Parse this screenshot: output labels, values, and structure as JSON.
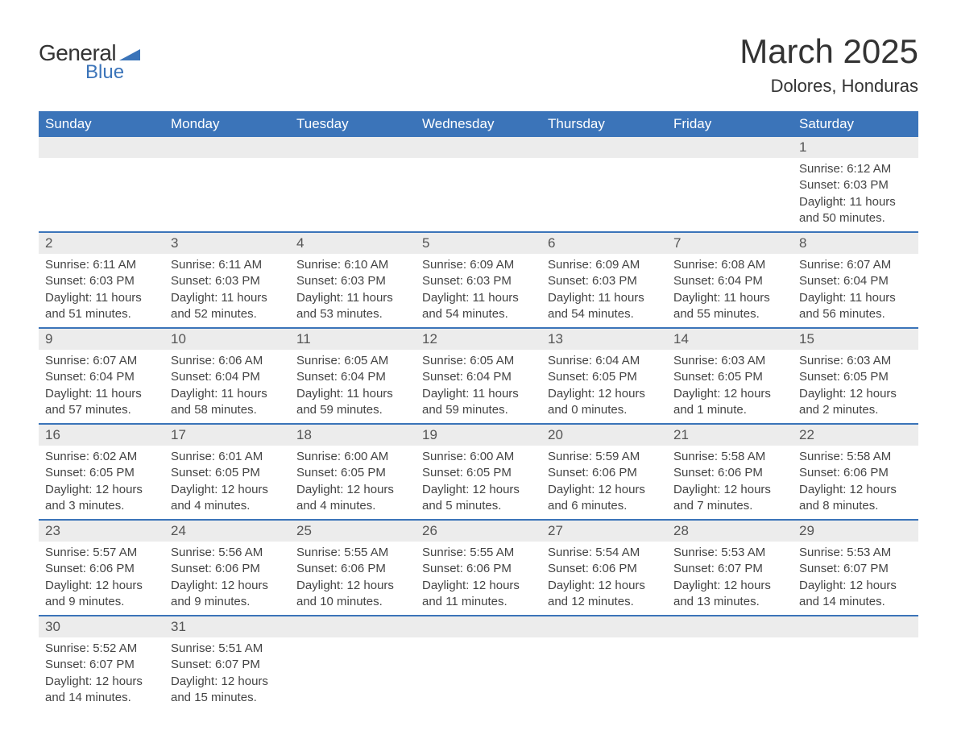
{
  "logo": {
    "text1": "General",
    "text2": "Blue",
    "text_color": "#333333",
    "accent_color": "#3b74b9"
  },
  "header": {
    "title": "March 2025",
    "location": "Dolores, Honduras"
  },
  "style": {
    "header_bg": "#3b74b9",
    "header_fg": "#ffffff",
    "daynum_bg": "#ececec",
    "row_border": "#3b74b9",
    "body_text": "#444444"
  },
  "weekdays": [
    "Sunday",
    "Monday",
    "Tuesday",
    "Wednesday",
    "Thursday",
    "Friday",
    "Saturday"
  ],
  "weeks": [
    [
      {
        "empty": true
      },
      {
        "empty": true
      },
      {
        "empty": true
      },
      {
        "empty": true
      },
      {
        "empty": true
      },
      {
        "empty": true
      },
      {
        "day": "1",
        "sunrise": "Sunrise: 6:12 AM",
        "sunset": "Sunset: 6:03 PM",
        "daylight1": "Daylight: 11 hours",
        "daylight2": "and 50 minutes."
      }
    ],
    [
      {
        "day": "2",
        "sunrise": "Sunrise: 6:11 AM",
        "sunset": "Sunset: 6:03 PM",
        "daylight1": "Daylight: 11 hours",
        "daylight2": "and 51 minutes."
      },
      {
        "day": "3",
        "sunrise": "Sunrise: 6:11 AM",
        "sunset": "Sunset: 6:03 PM",
        "daylight1": "Daylight: 11 hours",
        "daylight2": "and 52 minutes."
      },
      {
        "day": "4",
        "sunrise": "Sunrise: 6:10 AM",
        "sunset": "Sunset: 6:03 PM",
        "daylight1": "Daylight: 11 hours",
        "daylight2": "and 53 minutes."
      },
      {
        "day": "5",
        "sunrise": "Sunrise: 6:09 AM",
        "sunset": "Sunset: 6:03 PM",
        "daylight1": "Daylight: 11 hours",
        "daylight2": "and 54 minutes."
      },
      {
        "day": "6",
        "sunrise": "Sunrise: 6:09 AM",
        "sunset": "Sunset: 6:03 PM",
        "daylight1": "Daylight: 11 hours",
        "daylight2": "and 54 minutes."
      },
      {
        "day": "7",
        "sunrise": "Sunrise: 6:08 AM",
        "sunset": "Sunset: 6:04 PM",
        "daylight1": "Daylight: 11 hours",
        "daylight2": "and 55 minutes."
      },
      {
        "day": "8",
        "sunrise": "Sunrise: 6:07 AM",
        "sunset": "Sunset: 6:04 PM",
        "daylight1": "Daylight: 11 hours",
        "daylight2": "and 56 minutes."
      }
    ],
    [
      {
        "day": "9",
        "sunrise": "Sunrise: 6:07 AM",
        "sunset": "Sunset: 6:04 PM",
        "daylight1": "Daylight: 11 hours",
        "daylight2": "and 57 minutes."
      },
      {
        "day": "10",
        "sunrise": "Sunrise: 6:06 AM",
        "sunset": "Sunset: 6:04 PM",
        "daylight1": "Daylight: 11 hours",
        "daylight2": "and 58 minutes."
      },
      {
        "day": "11",
        "sunrise": "Sunrise: 6:05 AM",
        "sunset": "Sunset: 6:04 PM",
        "daylight1": "Daylight: 11 hours",
        "daylight2": "and 59 minutes."
      },
      {
        "day": "12",
        "sunrise": "Sunrise: 6:05 AM",
        "sunset": "Sunset: 6:04 PM",
        "daylight1": "Daylight: 11 hours",
        "daylight2": "and 59 minutes."
      },
      {
        "day": "13",
        "sunrise": "Sunrise: 6:04 AM",
        "sunset": "Sunset: 6:05 PM",
        "daylight1": "Daylight: 12 hours",
        "daylight2": "and 0 minutes."
      },
      {
        "day": "14",
        "sunrise": "Sunrise: 6:03 AM",
        "sunset": "Sunset: 6:05 PM",
        "daylight1": "Daylight: 12 hours",
        "daylight2": "and 1 minute."
      },
      {
        "day": "15",
        "sunrise": "Sunrise: 6:03 AM",
        "sunset": "Sunset: 6:05 PM",
        "daylight1": "Daylight: 12 hours",
        "daylight2": "and 2 minutes."
      }
    ],
    [
      {
        "day": "16",
        "sunrise": "Sunrise: 6:02 AM",
        "sunset": "Sunset: 6:05 PM",
        "daylight1": "Daylight: 12 hours",
        "daylight2": "and 3 minutes."
      },
      {
        "day": "17",
        "sunrise": "Sunrise: 6:01 AM",
        "sunset": "Sunset: 6:05 PM",
        "daylight1": "Daylight: 12 hours",
        "daylight2": "and 4 minutes."
      },
      {
        "day": "18",
        "sunrise": "Sunrise: 6:00 AM",
        "sunset": "Sunset: 6:05 PM",
        "daylight1": "Daylight: 12 hours",
        "daylight2": "and 4 minutes."
      },
      {
        "day": "19",
        "sunrise": "Sunrise: 6:00 AM",
        "sunset": "Sunset: 6:05 PM",
        "daylight1": "Daylight: 12 hours",
        "daylight2": "and 5 minutes."
      },
      {
        "day": "20",
        "sunrise": "Sunrise: 5:59 AM",
        "sunset": "Sunset: 6:06 PM",
        "daylight1": "Daylight: 12 hours",
        "daylight2": "and 6 minutes."
      },
      {
        "day": "21",
        "sunrise": "Sunrise: 5:58 AM",
        "sunset": "Sunset: 6:06 PM",
        "daylight1": "Daylight: 12 hours",
        "daylight2": "and 7 minutes."
      },
      {
        "day": "22",
        "sunrise": "Sunrise: 5:58 AM",
        "sunset": "Sunset: 6:06 PM",
        "daylight1": "Daylight: 12 hours",
        "daylight2": "and 8 minutes."
      }
    ],
    [
      {
        "day": "23",
        "sunrise": "Sunrise: 5:57 AM",
        "sunset": "Sunset: 6:06 PM",
        "daylight1": "Daylight: 12 hours",
        "daylight2": "and 9 minutes."
      },
      {
        "day": "24",
        "sunrise": "Sunrise: 5:56 AM",
        "sunset": "Sunset: 6:06 PM",
        "daylight1": "Daylight: 12 hours",
        "daylight2": "and 9 minutes."
      },
      {
        "day": "25",
        "sunrise": "Sunrise: 5:55 AM",
        "sunset": "Sunset: 6:06 PM",
        "daylight1": "Daylight: 12 hours",
        "daylight2": "and 10 minutes."
      },
      {
        "day": "26",
        "sunrise": "Sunrise: 5:55 AM",
        "sunset": "Sunset: 6:06 PM",
        "daylight1": "Daylight: 12 hours",
        "daylight2": "and 11 minutes."
      },
      {
        "day": "27",
        "sunrise": "Sunrise: 5:54 AM",
        "sunset": "Sunset: 6:06 PM",
        "daylight1": "Daylight: 12 hours",
        "daylight2": "and 12 minutes."
      },
      {
        "day": "28",
        "sunrise": "Sunrise: 5:53 AM",
        "sunset": "Sunset: 6:07 PM",
        "daylight1": "Daylight: 12 hours",
        "daylight2": "and 13 minutes."
      },
      {
        "day": "29",
        "sunrise": "Sunrise: 5:53 AM",
        "sunset": "Sunset: 6:07 PM",
        "daylight1": "Daylight: 12 hours",
        "daylight2": "and 14 minutes."
      }
    ],
    [
      {
        "day": "30",
        "sunrise": "Sunrise: 5:52 AM",
        "sunset": "Sunset: 6:07 PM",
        "daylight1": "Daylight: 12 hours",
        "daylight2": "and 14 minutes."
      },
      {
        "day": "31",
        "sunrise": "Sunrise: 5:51 AM",
        "sunset": "Sunset: 6:07 PM",
        "daylight1": "Daylight: 12 hours",
        "daylight2": "and 15 minutes."
      },
      {
        "empty": true
      },
      {
        "empty": true
      },
      {
        "empty": true
      },
      {
        "empty": true
      },
      {
        "empty": true
      }
    ]
  ]
}
